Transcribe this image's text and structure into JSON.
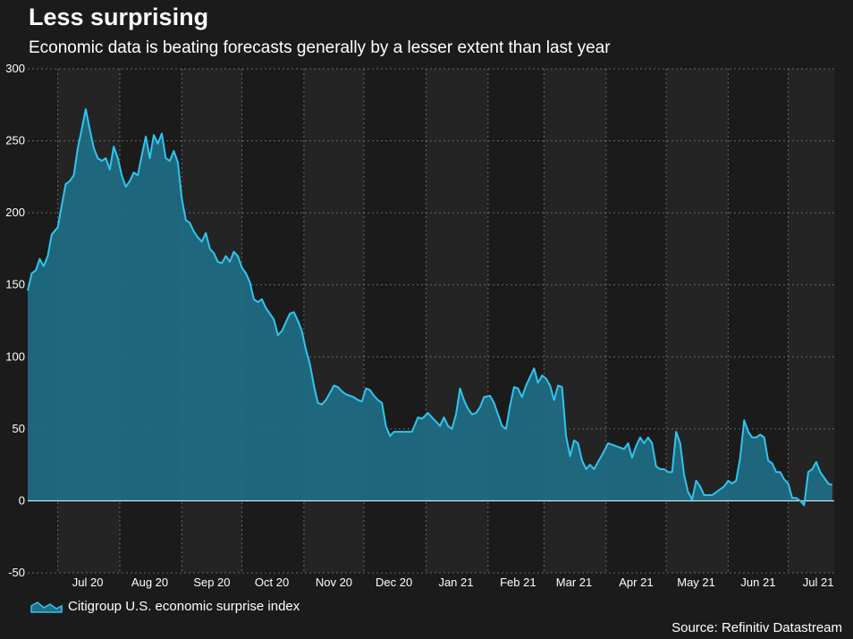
{
  "header": {
    "title": "Less surprising",
    "subtitle": "Economic data is beating forecasts generally by a lesser extent than last year"
  },
  "footer": {
    "source": "Source: Refinitiv Datastream"
  },
  "colors": {
    "background": "#1b1b1b",
    "band_alt": "#242424",
    "line": "#2fc5f0",
    "area": "#1f6f86",
    "grid": "#6a6a6a",
    "zero_line": "#cfefff"
  },
  "chart_data": {
    "type": "area",
    "title": "Less surprising",
    "subtitle": "Economic data is beating forecasts generally by a lesser extent than last year",
    "xlabel": "",
    "ylabel": "",
    "ylim": [
      -50,
      300
    ],
    "yticks": [
      -50,
      0,
      50,
      100,
      150,
      200,
      250,
      300
    ],
    "xlim": [
      "2020-06-15",
      "2021-07-23"
    ],
    "x_ticks": [
      {
        "label": "Jul 20",
        "date": "2020-07-15"
      },
      {
        "label": "Aug 20",
        "date": "2020-08-15"
      },
      {
        "label": "Sep 20",
        "date": "2020-09-15"
      },
      {
        "label": "Oct 20",
        "date": "2020-10-15"
      },
      {
        "label": "Nov 20",
        "date": "2020-11-15"
      },
      {
        "label": "Dec 20",
        "date": "2020-12-15"
      },
      {
        "label": "Jan 21",
        "date": "2021-01-15"
      },
      {
        "label": "Feb 21",
        "date": "2021-02-15"
      },
      {
        "label": "Mar 21",
        "date": "2021-03-15"
      },
      {
        "label": "Apr 21",
        "date": "2021-04-15"
      },
      {
        "label": "May 21",
        "date": "2021-05-15"
      },
      {
        "label": "Jun 21",
        "date": "2021-06-15"
      },
      {
        "label": "Jul 21",
        "date": "2021-07-15"
      }
    ],
    "month_bands": [
      "2020-06-30",
      "2020-07-31",
      "2020-08-31",
      "2020-09-30",
      "2020-10-31",
      "2020-11-30",
      "2020-12-31",
      "2021-01-31",
      "2021-02-28",
      "2021-03-31",
      "2021-04-30",
      "2021-05-31",
      "2021-06-30"
    ],
    "grid": true,
    "legend_position": "bottom-left",
    "series": [
      {
        "name": "Citigroup U.S. economic surprise index",
        "points": [
          [
            "2020-06-15",
            146
          ],
          [
            "2020-06-17",
            158
          ],
          [
            "2020-06-19",
            160
          ],
          [
            "2020-06-21",
            168
          ],
          [
            "2020-06-23",
            163
          ],
          [
            "2020-06-25",
            170
          ],
          [
            "2020-06-27",
            185
          ],
          [
            "2020-06-30",
            190
          ],
          [
            "2020-07-02",
            205
          ],
          [
            "2020-07-04",
            220
          ],
          [
            "2020-07-06",
            222
          ],
          [
            "2020-07-08",
            226
          ],
          [
            "2020-07-10",
            245
          ],
          [
            "2020-07-12",
            258
          ],
          [
            "2020-07-14",
            272
          ],
          [
            "2020-07-16",
            258
          ],
          [
            "2020-07-18",
            245
          ],
          [
            "2020-07-20",
            238
          ],
          [
            "2020-07-22",
            236
          ],
          [
            "2020-07-24",
            238
          ],
          [
            "2020-07-26",
            230
          ],
          [
            "2020-07-28",
            246
          ],
          [
            "2020-07-30",
            238
          ],
          [
            "2020-08-01",
            226
          ],
          [
            "2020-08-03",
            218
          ],
          [
            "2020-08-05",
            222
          ],
          [
            "2020-08-07",
            228
          ],
          [
            "2020-08-09",
            226
          ],
          [
            "2020-08-11",
            240
          ],
          [
            "2020-08-13",
            253
          ],
          [
            "2020-08-15",
            238
          ],
          [
            "2020-08-17",
            254
          ],
          [
            "2020-08-19",
            248
          ],
          [
            "2020-08-21",
            255
          ],
          [
            "2020-08-23",
            238
          ],
          [
            "2020-08-25",
            236
          ],
          [
            "2020-08-27",
            243
          ],
          [
            "2020-08-29",
            235
          ],
          [
            "2020-08-31",
            210
          ],
          [
            "2020-09-02",
            195
          ],
          [
            "2020-09-04",
            193
          ],
          [
            "2020-09-06",
            187
          ],
          [
            "2020-09-08",
            183
          ],
          [
            "2020-09-10",
            180
          ],
          [
            "2020-09-12",
            186
          ],
          [
            "2020-09-14",
            175
          ],
          [
            "2020-09-16",
            172
          ],
          [
            "2020-09-18",
            166
          ],
          [
            "2020-09-20",
            165
          ],
          [
            "2020-09-22",
            170
          ],
          [
            "2020-09-24",
            166
          ],
          [
            "2020-09-26",
            173
          ],
          [
            "2020-09-28",
            170
          ],
          [
            "2020-09-30",
            162
          ],
          [
            "2020-10-02",
            158
          ],
          [
            "2020-10-04",
            152
          ],
          [
            "2020-10-06",
            140
          ],
          [
            "2020-10-08",
            138
          ],
          [
            "2020-10-10",
            140
          ],
          [
            "2020-10-12",
            134
          ],
          [
            "2020-10-14",
            130
          ],
          [
            "2020-10-16",
            126
          ],
          [
            "2020-10-18",
            115
          ],
          [
            "2020-10-20",
            118
          ],
          [
            "2020-10-22",
            124
          ],
          [
            "2020-10-24",
            130
          ],
          [
            "2020-10-26",
            131
          ],
          [
            "2020-10-28",
            125
          ],
          [
            "2020-10-30",
            118
          ],
          [
            "2020-11-01",
            105
          ],
          [
            "2020-11-03",
            95
          ],
          [
            "2020-11-05",
            80
          ],
          [
            "2020-11-07",
            68
          ],
          [
            "2020-11-09",
            67
          ],
          [
            "2020-11-11",
            70
          ],
          [
            "2020-11-13",
            75
          ],
          [
            "2020-11-15",
            80
          ],
          [
            "2020-11-17",
            79
          ],
          [
            "2020-11-19",
            76
          ],
          [
            "2020-11-21",
            74
          ],
          [
            "2020-11-23",
            73
          ],
          [
            "2020-11-25",
            72
          ],
          [
            "2020-11-27",
            70
          ],
          [
            "2020-11-29",
            69
          ],
          [
            "2020-12-01",
            78
          ],
          [
            "2020-12-03",
            77
          ],
          [
            "2020-12-05",
            73
          ],
          [
            "2020-12-07",
            70
          ],
          [
            "2020-12-09",
            68
          ],
          [
            "2020-12-11",
            52
          ],
          [
            "2020-12-13",
            45
          ],
          [
            "2020-12-15",
            48
          ],
          [
            "2020-12-18",
            48
          ],
          [
            "2020-12-21",
            48
          ],
          [
            "2020-12-24",
            48
          ],
          [
            "2020-12-27",
            58
          ],
          [
            "2020-12-29",
            57
          ],
          [
            "2021-01-01",
            61
          ],
          [
            "2021-01-03",
            58
          ],
          [
            "2021-01-05",
            55
          ],
          [
            "2021-01-07",
            52
          ],
          [
            "2021-01-09",
            58
          ],
          [
            "2021-01-11",
            52
          ],
          [
            "2021-01-13",
            50
          ],
          [
            "2021-01-15",
            60
          ],
          [
            "2021-01-17",
            78
          ],
          [
            "2021-01-19",
            70
          ],
          [
            "2021-01-21",
            64
          ],
          [
            "2021-01-23",
            60
          ],
          [
            "2021-01-25",
            61
          ],
          [
            "2021-01-27",
            65
          ],
          [
            "2021-01-29",
            72
          ],
          [
            "2021-02-01",
            73
          ],
          [
            "2021-02-03",
            68
          ],
          [
            "2021-02-05",
            60
          ],
          [
            "2021-02-07",
            52
          ],
          [
            "2021-02-09",
            50
          ],
          [
            "2021-02-11",
            66
          ],
          [
            "2021-02-13",
            79
          ],
          [
            "2021-02-15",
            78
          ],
          [
            "2021-02-17",
            72
          ],
          [
            "2021-02-19",
            80
          ],
          [
            "2021-02-21",
            86
          ],
          [
            "2021-02-23",
            92
          ],
          [
            "2021-02-25",
            82
          ],
          [
            "2021-02-27",
            87
          ],
          [
            "2021-03-01",
            85
          ],
          [
            "2021-03-03",
            80
          ],
          [
            "2021-03-05",
            70
          ],
          [
            "2021-03-07",
            80
          ],
          [
            "2021-03-09",
            79
          ],
          [
            "2021-03-11",
            45
          ],
          [
            "2021-03-13",
            31
          ],
          [
            "2021-03-15",
            42
          ],
          [
            "2021-03-17",
            40
          ],
          [
            "2021-03-19",
            28
          ],
          [
            "2021-03-21",
            22
          ],
          [
            "2021-03-23",
            25
          ],
          [
            "2021-03-25",
            22
          ],
          [
            "2021-03-27",
            27
          ],
          [
            "2021-03-29",
            32
          ],
          [
            "2021-04-01",
            40
          ],
          [
            "2021-04-03",
            39
          ],
          [
            "2021-04-05",
            38
          ],
          [
            "2021-04-07",
            37
          ],
          [
            "2021-04-09",
            36
          ],
          [
            "2021-04-11",
            40
          ],
          [
            "2021-04-13",
            30
          ],
          [
            "2021-04-15",
            38
          ],
          [
            "2021-04-17",
            44
          ],
          [
            "2021-04-19",
            40
          ],
          [
            "2021-04-21",
            44
          ],
          [
            "2021-04-23",
            40
          ],
          [
            "2021-04-25",
            24
          ],
          [
            "2021-04-27",
            22
          ],
          [
            "2021-04-29",
            22
          ],
          [
            "2021-05-01",
            20
          ],
          [
            "2021-05-03",
            20
          ],
          [
            "2021-05-05",
            48
          ],
          [
            "2021-05-07",
            40
          ],
          [
            "2021-05-09",
            18
          ],
          [
            "2021-05-11",
            6
          ],
          [
            "2021-05-13",
            1
          ],
          [
            "2021-05-15",
            14
          ],
          [
            "2021-05-17",
            10
          ],
          [
            "2021-05-19",
            4
          ],
          [
            "2021-05-21",
            4
          ],
          [
            "2021-05-23",
            4
          ],
          [
            "2021-05-25",
            6
          ],
          [
            "2021-05-27",
            8
          ],
          [
            "2021-05-29",
            10
          ],
          [
            "2021-05-31",
            14
          ],
          [
            "2021-06-02",
            12
          ],
          [
            "2021-06-04",
            14
          ],
          [
            "2021-06-06",
            30
          ],
          [
            "2021-06-08",
            56
          ],
          [
            "2021-06-10",
            48
          ],
          [
            "2021-06-12",
            44
          ],
          [
            "2021-06-14",
            44
          ],
          [
            "2021-06-16",
            46
          ],
          [
            "2021-06-18",
            44
          ],
          [
            "2021-06-20",
            28
          ],
          [
            "2021-06-22",
            26
          ],
          [
            "2021-06-24",
            20
          ],
          [
            "2021-06-26",
            20
          ],
          [
            "2021-06-28",
            15
          ],
          [
            "2021-06-30",
            12
          ],
          [
            "2021-07-02",
            2
          ],
          [
            "2021-07-04",
            2
          ],
          [
            "2021-07-06",
            0
          ],
          [
            "2021-07-08",
            -3
          ],
          [
            "2021-07-10",
            20
          ],
          [
            "2021-07-12",
            22
          ],
          [
            "2021-07-14",
            27
          ],
          [
            "2021-07-16",
            20
          ],
          [
            "2021-07-18",
            16
          ],
          [
            "2021-07-20",
            12
          ],
          [
            "2021-07-22",
            11
          ]
        ]
      }
    ]
  }
}
